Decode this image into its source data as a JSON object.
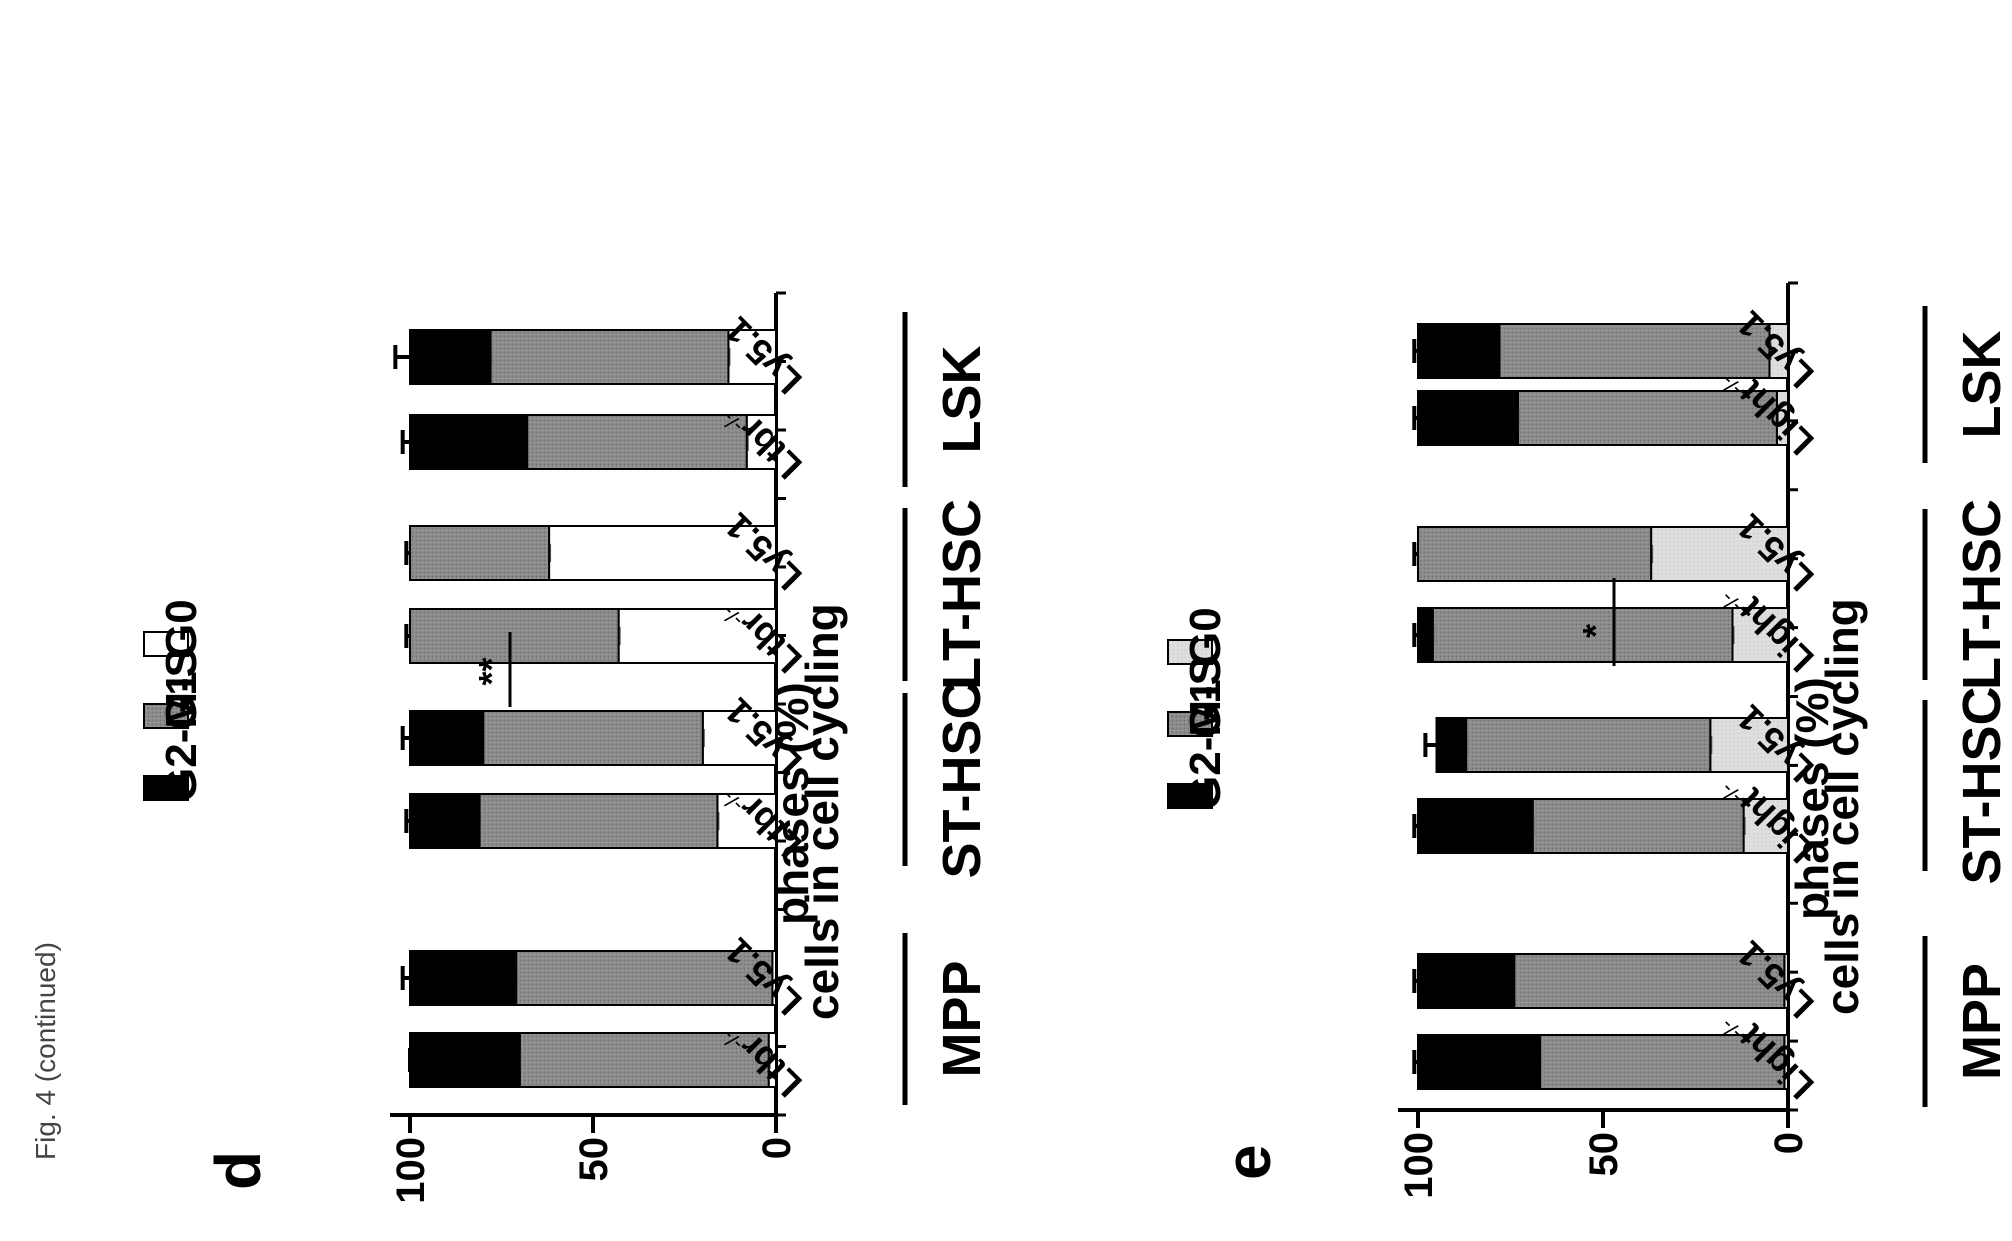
{
  "figure": {
    "caption": "Fig. 4 (continued)"
  },
  "colors": {
    "G0": "#ffffff",
    "G1": "#8c8c8c",
    "G2-M-S": "#000000",
    "G0_alt": "#dddddd"
  },
  "chart_data": [
    {
      "type": "bar",
      "stacked": true,
      "panel_label": "d",
      "ylabel": "cells in cell cycling phases (%)",
      "ylim": [
        0,
        100
      ],
      "yticks": [
        "0",
        "50",
        "100"
      ],
      "legend": [
        "G0",
        "G1",
        "G2-M-S"
      ],
      "groups": [
        "LSK",
        "LT-HSC",
        "ST-HSC",
        "MPP"
      ],
      "categories": [
        "Ly5.1",
        "Ltbr-/-",
        "Ly5.1",
        "Ltbr-/-",
        "Ly5.1",
        "Ltbr-/-",
        "Ly5.1",
        "Ltbr-/-"
      ],
      "series": [
        {
          "name": "G0",
          "values": [
            13,
            8,
            62,
            43,
            20,
            16,
            1,
            2
          ]
        },
        {
          "name": "G1",
          "values": [
            65,
            60,
            38,
            57,
            60,
            65,
            70,
            68
          ]
        },
        {
          "name": "G2-M-S",
          "values": [
            22,
            32,
            0,
            0,
            20,
            19,
            29,
            30
          ]
        }
      ],
      "errors": [
        4,
        2,
        1,
        1,
        2,
        1,
        2,
        0
      ],
      "annotations": [
        {
          "text": "**",
          "between": [
            "LT-HSC Ly5.1",
            "LT-HSC Ltbr-/-"
          ]
        }
      ]
    },
    {
      "type": "bar",
      "stacked": true,
      "panel_label": "e",
      "ylabel": "cells in cell cycling phases (%)",
      "ylim": [
        0,
        100
      ],
      "yticks": [
        "0",
        "50",
        "100"
      ],
      "legend": [
        "G0",
        "G1",
        "G2-M-S"
      ],
      "groups": [
        "LSK",
        "LT-HSC",
        "ST-HSC",
        "MPP"
      ],
      "categories": [
        "Ly5.1",
        "Light-/-",
        "Ly5.1",
        "Light-/-",
        "Ly5.1",
        "Light-/-",
        "Ly5.1",
        "Light-/-"
      ],
      "series": [
        {
          "name": "G0",
          "values": [
            5,
            3,
            37,
            15,
            21,
            12,
            1,
            1
          ]
        },
        {
          "name": "G1",
          "values": [
            73,
            70,
            63,
            81,
            66,
            57,
            73,
            66
          ]
        },
        {
          "name": "G2-M-S",
          "values": [
            22,
            27,
            0,
            4,
            8,
            31,
            26,
            33
          ]
        }
      ],
      "errors": [
        1,
        1,
        1,
        1,
        3,
        1,
        1,
        1
      ],
      "annotations": [
        {
          "text": "*",
          "between": [
            "LT-HSC Ly5.1",
            "LT-HSC Light-/-"
          ]
        }
      ]
    }
  ]
}
